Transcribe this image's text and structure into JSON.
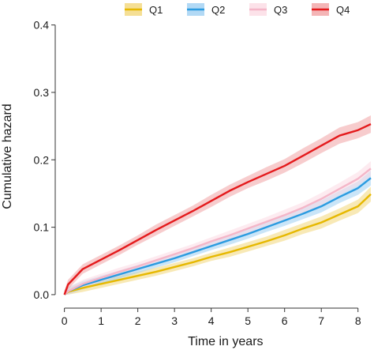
{
  "chart_data": {
    "type": "line",
    "title": "",
    "xlabel": "Time in years",
    "ylabel": "Cumulative hazard",
    "xlim": [
      -0.25,
      8.35
    ],
    "ylim": [
      -0.02,
      0.43
    ],
    "x_ticks": [
      0,
      1,
      2,
      3,
      4,
      5,
      6,
      7,
      8
    ],
    "y_ticks": [
      0.0,
      0.1,
      0.2,
      0.3,
      0.4
    ],
    "y_tick_labels": [
      "0.0",
      "0.1",
      "0.2",
      "0.3",
      "0.4"
    ],
    "grid": false,
    "legend_position": "top",
    "confidence_bands": true,
    "series": [
      {
        "name": "Q1",
        "color": "#e6b800",
        "band_color": "#f2d77a",
        "x": [
          0,
          0.1,
          0.5,
          1,
          1.5,
          2,
          2.5,
          3,
          3.5,
          4,
          4.5,
          5,
          5.5,
          6,
          6.5,
          7,
          7.5,
          8,
          8.35
        ],
        "y": [
          0.0,
          0.004,
          0.01,
          0.016,
          0.022,
          0.028,
          0.034,
          0.041,
          0.048,
          0.056,
          0.063,
          0.071,
          0.079,
          0.088,
          0.098,
          0.107,
          0.119,
          0.131,
          0.149
        ],
        "band": [
          0.006,
          0.006,
          0.006,
          0.006,
          0.006,
          0.006,
          0.006,
          0.006,
          0.006,
          0.006,
          0.007,
          0.007,
          0.007,
          0.008,
          0.008,
          0.009,
          0.009,
          0.01,
          0.011
        ]
      },
      {
        "name": "Q2",
        "color": "#2b9be0",
        "band_color": "#9fd0f2",
        "x": [
          0,
          0.1,
          0.5,
          1,
          1.5,
          2,
          2.5,
          3,
          3.5,
          4,
          4.5,
          5,
          5.5,
          6,
          6.5,
          7,
          7.5,
          8,
          8.35
        ],
        "y": [
          0.0,
          0.005,
          0.014,
          0.022,
          0.03,
          0.038,
          0.046,
          0.054,
          0.063,
          0.072,
          0.081,
          0.09,
          0.1,
          0.11,
          0.12,
          0.131,
          0.145,
          0.158,
          0.173
        ],
        "band": [
          0.006,
          0.006,
          0.006,
          0.006,
          0.006,
          0.006,
          0.006,
          0.006,
          0.006,
          0.006,
          0.007,
          0.007,
          0.007,
          0.008,
          0.008,
          0.009,
          0.009,
          0.01,
          0.011
        ]
      },
      {
        "name": "Q3",
        "color": "#f4b6c8",
        "band_color": "#fbdbe4",
        "x": [
          0,
          0.1,
          0.5,
          1,
          1.5,
          2,
          2.5,
          3,
          3.5,
          4,
          4.5,
          5,
          5.5,
          6,
          6.5,
          7,
          7.5,
          8,
          8.35
        ],
        "y": [
          0.0,
          0.005,
          0.016,
          0.025,
          0.034,
          0.042,
          0.051,
          0.06,
          0.069,
          0.079,
          0.088,
          0.098,
          0.108,
          0.118,
          0.129,
          0.142,
          0.157,
          0.172,
          0.187
        ],
        "band": [
          0.006,
          0.006,
          0.006,
          0.006,
          0.006,
          0.006,
          0.006,
          0.006,
          0.006,
          0.006,
          0.007,
          0.007,
          0.007,
          0.008,
          0.008,
          0.009,
          0.009,
          0.01,
          0.011
        ]
      },
      {
        "name": "Q4",
        "color": "#e41a1c",
        "band_color": "#f1a3a4",
        "x": [
          0,
          0.1,
          0.5,
          1,
          1.5,
          2,
          2.5,
          3,
          3.5,
          4,
          4.5,
          5,
          5.5,
          6,
          6.5,
          7,
          7.5,
          8,
          8.35
        ],
        "y": [
          0.0,
          0.015,
          0.038,
          0.052,
          0.066,
          0.081,
          0.096,
          0.11,
          0.124,
          0.139,
          0.154,
          0.167,
          0.179,
          0.191,
          0.206,
          0.221,
          0.236,
          0.244,
          0.253
        ],
        "band": [
          0.006,
          0.007,
          0.007,
          0.007,
          0.007,
          0.007,
          0.008,
          0.008,
          0.008,
          0.009,
          0.009,
          0.009,
          0.01,
          0.01,
          0.011,
          0.011,
          0.012,
          0.012,
          0.013
        ]
      }
    ]
  }
}
